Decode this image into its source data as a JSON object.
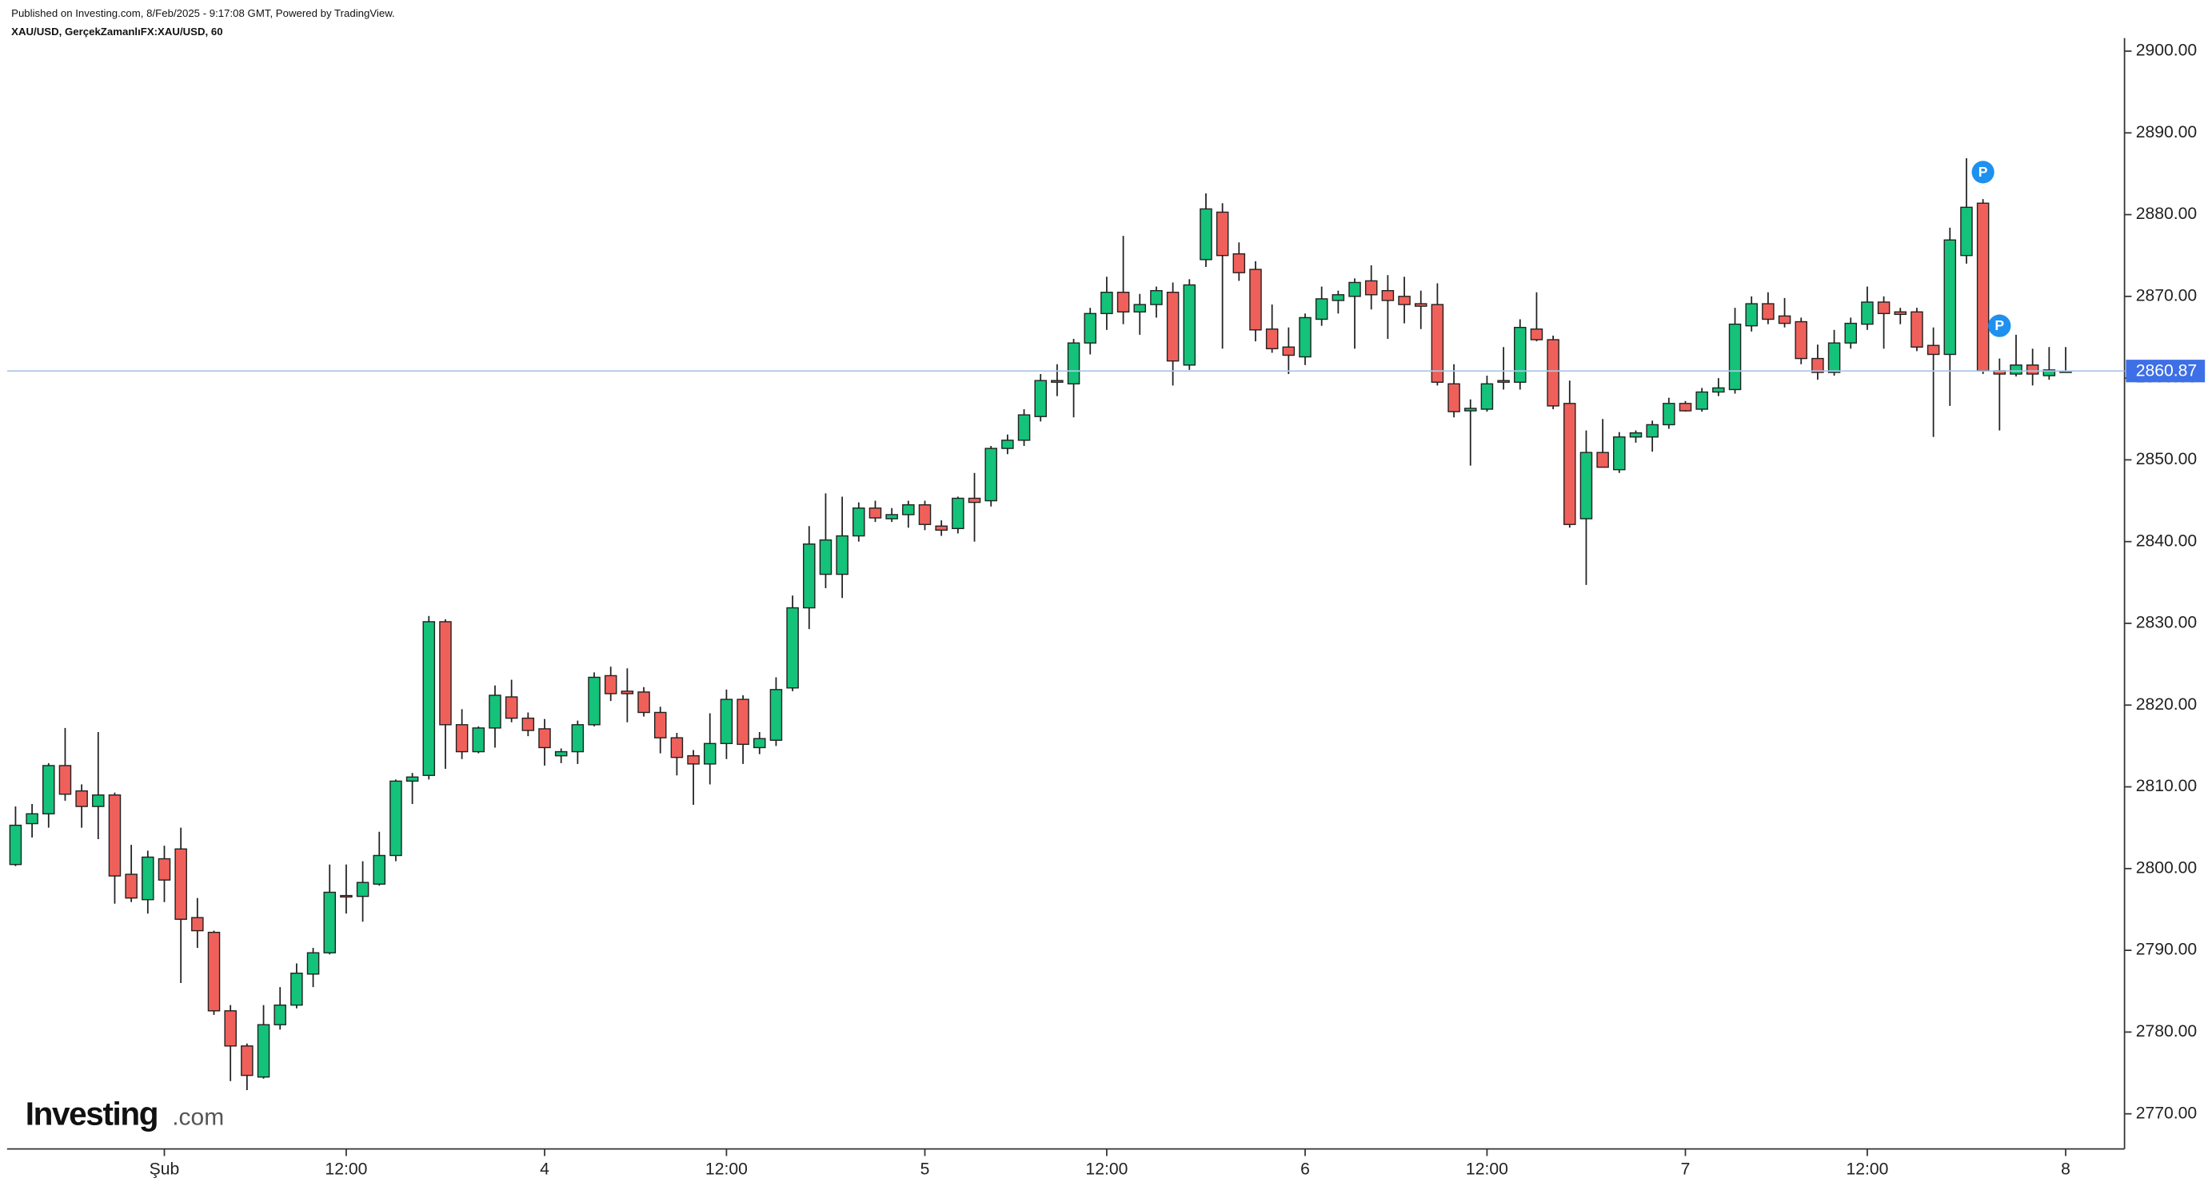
{
  "header": {
    "published": "Published on Investing.com, 8/Feb/2025 - 9:17:08 GMT, Powered by TradingView.",
    "symbol": "XAU/USD, GerçekZamanlıFX:XAU/USD, 60"
  },
  "logo": {
    "name": "Investing",
    "suffix": ".com"
  },
  "chart_data": {
    "type": "candlestick",
    "categories": [
      null,
      null,
      null,
      null,
      null,
      null,
      null,
      null,
      null,
      "Şub",
      null,
      null,
      null,
      null,
      null,
      null,
      null,
      null,
      null,
      null,
      "12:00",
      null,
      null,
      null,
      null,
      null,
      null,
      null,
      null,
      null,
      null,
      null,
      "4",
      null,
      null,
      null,
      null,
      null,
      null,
      null,
      null,
      null,
      null,
      "12:00",
      null,
      null,
      null,
      null,
      null,
      null,
      null,
      null,
      null,
      null,
      null,
      "5",
      null,
      null,
      null,
      null,
      null,
      null,
      null,
      null,
      null,
      null,
      "12:00",
      null,
      null,
      null,
      null,
      null,
      null,
      null,
      null,
      null,
      null,
      null,
      "6",
      null,
      null,
      null,
      null,
      null,
      null,
      null,
      null,
      null,
      null,
      "12:00",
      null,
      null,
      null,
      null,
      null,
      null,
      null,
      null,
      null,
      null,
      null,
      "7",
      null,
      null,
      null,
      null,
      null,
      null,
      null,
      null,
      null,
      null,
      "12:00",
      null,
      null,
      null,
      null,
      null,
      null,
      null,
      null,
      null,
      null,
      null,
      "8"
    ],
    "open": [
      2800.5,
      2805.5,
      2806.7,
      2812.6,
      2809.5,
      2807.6,
      2809.0,
      2799.3,
      2796.2,
      2801.2,
      2802.4,
      2794.0,
      2792.2,
      2782.6,
      2778.3,
      2774.5,
      2780.9,
      2783.3,
      2787.1,
      2789.7,
      2796.7,
      2796.6,
      2798.1,
      2801.6,
      2810.7,
      2811.4,
      2830.2,
      2817.6,
      2814.3,
      2817.2,
      2821.0,
      2818.4,
      2817.1,
      2813.8,
      2814.3,
      2817.6,
      2823.6,
      2821.7,
      2821.6,
      2819.1,
      2816.0,
      2813.8,
      2812.8,
      2815.3,
      2820.7,
      2814.8,
      2815.7,
      2822.1,
      2831.9,
      2836.0,
      2836.0,
      2840.7,
      2844.1,
      2842.8,
      2843.3,
      2844.5,
      2841.9,
      2841.6,
      2845.3,
      2845.0,
      2851.4,
      2852.4,
      2855.3,
      2859.7,
      2859.3,
      2864.3,
      2867.9,
      2870.5,
      2868.1,
      2869.0,
      2870.5,
      2861.6,
      2874.5,
      2880.3,
      2875.2,
      2873.3,
      2866.0,
      2863.8,
      2862.6,
      2867.2,
      2869.5,
      2870.0,
      2871.9,
      2870.7,
      2870.0,
      2869.1,
      2869.0,
      2859.3,
      2856.0,
      2856.2,
      2859.7,
      2859.5,
      2866.0,
      2864.7,
      2856.9,
      2842.8,
      2850.9,
      2848.8,
      2852.8,
      2852.8,
      2854.3,
      2856.9,
      2856.2,
      2858.3,
      2858.6,
      2866.4,
      2869.1,
      2867.6,
      2866.9,
      2862.4,
      2860.7,
      2864.3,
      2866.6,
      2869.3,
      2868.1,
      2868.1,
      2864.0,
      2862.9,
      2875.0,
      2881.4,
      2860.9,
      2860.5,
      2861.6,
      2860.3,
      2860.8
    ],
    "high": [
      2807.6,
      2807.9,
      2812.9,
      2817.2,
      2810.3,
      2816.7,
      2809.3,
      2802.9,
      2802.2,
      2802.8,
      2805.0,
      2796.4,
      2792.4,
      2783.3,
      2778.6,
      2783.3,
      2785.5,
      2788.4,
      2790.3,
      2800.5,
      2800.5,
      2800.9,
      2804.5,
      2810.9,
      2811.7,
      2830.9,
      2830.5,
      2819.5,
      2817.4,
      2822.4,
      2823.1,
      2819.1,
      2818.3,
      2814.7,
      2818.1,
      2824.0,
      2824.7,
      2824.5,
      2822.2,
      2819.8,
      2816.6,
      2814.5,
      2819.0,
      2821.9,
      2821.2,
      2816.7,
      2823.4,
      2833.4,
      2841.9,
      2845.9,
      2845.5,
      2844.8,
      2845.0,
      2844.1,
      2845.0,
      2845.0,
      2842.6,
      2845.5,
      2848.4,
      2851.7,
      2853.1,
      2856.2,
      2860.5,
      2861.7,
      2864.8,
      2868.6,
      2872.4,
      2877.4,
      2870.3,
      2871.2,
      2871.7,
      2872.1,
      2882.6,
      2881.4,
      2876.6,
      2874.3,
      2869.0,
      2866.2,
      2867.9,
      2871.2,
      2870.7,
      2872.2,
      2873.8,
      2872.6,
      2872.4,
      2870.7,
      2871.6,
      2861.7,
      2857.4,
      2860.3,
      2863.8,
      2867.2,
      2870.5,
      2865.2,
      2859.7,
      2853.6,
      2855.0,
      2853.4,
      2853.6,
      2854.8,
      2857.6,
      2857.2,
      2858.8,
      2860.0,
      2868.6,
      2870.0,
      2870.5,
      2869.8,
      2867.4,
      2864.1,
      2865.9,
      2867.4,
      2871.2,
      2870.0,
      2868.6,
      2868.6,
      2866.2,
      2878.4,
      2886.9,
      2881.9,
      2862.4,
      2865.3,
      2863.6,
      2863.8,
      2863.8
    ],
    "low": [
      2800.3,
      2803.8,
      2805.0,
      2808.3,
      2805.0,
      2803.6,
      2795.7,
      2795.9,
      2794.5,
      2795.9,
      2786.0,
      2790.3,
      2782.1,
      2774.0,
      2772.9,
      2774.3,
      2780.3,
      2782.9,
      2785.5,
      2789.5,
      2794.5,
      2793.5,
      2797.9,
      2800.9,
      2807.9,
      2810.9,
      2812.2,
      2813.4,
      2814.1,
      2814.8,
      2817.9,
      2816.2,
      2812.6,
      2812.9,
      2812.8,
      2817.4,
      2820.5,
      2817.9,
      2818.6,
      2814.1,
      2811.4,
      2807.8,
      2810.3,
      2813.4,
      2812.8,
      2814.0,
      2815.0,
      2821.7,
      2829.3,
      2834.3,
      2833.1,
      2840.0,
      2842.4,
      2842.4,
      2841.7,
      2841.4,
      2840.7,
      2841.0,
      2840.0,
      2844.3,
      2850.7,
      2851.7,
      2854.7,
      2857.8,
      2855.2,
      2862.9,
      2865.9,
      2866.6,
      2865.3,
      2867.4,
      2859.1,
      2861.0,
      2873.6,
      2863.6,
      2871.9,
      2864.5,
      2863.1,
      2860.5,
      2861.6,
      2866.4,
      2867.9,
      2863.6,
      2868.4,
      2864.8,
      2866.7,
      2866.0,
      2859.1,
      2855.2,
      2849.3,
      2855.9,
      2858.6,
      2858.6,
      2864.5,
      2856.2,
      2841.7,
      2834.7,
      2849.1,
      2848.4,
      2852.1,
      2851.0,
      2853.8,
      2855.9,
      2855.9,
      2857.8,
      2858.1,
      2865.7,
      2866.6,
      2866.2,
      2861.7,
      2859.8,
      2860.3,
      2863.6,
      2865.9,
      2863.6,
      2866.6,
      2863.3,
      2852.8,
      2856.6,
      2874.0,
      2860.5,
      2853.6,
      2860.2,
      2859.1,
      2859.8,
      2860.7
    ],
    "close": [
      2805.3,
      2806.7,
      2812.6,
      2809.1,
      2807.6,
      2809.0,
      2799.1,
      2796.4,
      2801.4,
      2798.6,
      2793.8,
      2792.4,
      2782.6,
      2778.3,
      2774.7,
      2780.9,
      2783.3,
      2787.2,
      2789.7,
      2797.1,
      2796.6,
      2798.3,
      2801.6,
      2810.7,
      2811.2,
      2830.2,
      2817.6,
      2814.3,
      2817.2,
      2821.2,
      2818.4,
      2816.9,
      2814.8,
      2814.3,
      2817.6,
      2823.4,
      2821.4,
      2821.4,
      2819.1,
      2816.0,
      2813.6,
      2812.8,
      2815.3,
      2820.7,
      2815.2,
      2815.9,
      2821.9,
      2831.9,
      2839.7,
      2840.2,
      2840.7,
      2844.1,
      2842.9,
      2843.3,
      2844.5,
      2842.1,
      2841.4,
      2845.3,
      2844.8,
      2851.4,
      2852.4,
      2855.5,
      2859.7,
      2859.5,
      2864.3,
      2867.9,
      2870.5,
      2868.1,
      2869.0,
      2870.7,
      2862.1,
      2871.4,
      2880.7,
      2875.0,
      2872.9,
      2865.9,
      2863.6,
      2862.8,
      2867.4,
      2869.7,
      2870.2,
      2871.7,
      2870.2,
      2869.5,
      2869.0,
      2868.8,
      2859.5,
      2855.9,
      2856.3,
      2859.3,
      2859.5,
      2866.2,
      2864.7,
      2856.6,
      2842.1,
      2850.9,
      2849.1,
      2852.8,
      2853.3,
      2854.3,
      2856.9,
      2856.0,
      2858.3,
      2858.8,
      2866.6,
      2869.1,
      2867.2,
      2866.7,
      2862.4,
      2860.7,
      2864.3,
      2866.7,
      2869.3,
      2867.9,
      2867.8,
      2863.8,
      2862.9,
      2876.9,
      2880.9,
      2860.9,
      2860.5,
      2861.6,
      2860.5,
      2861.0,
      2860.87
    ],
    "up_color": "#14c27a",
    "down_color": "#f0605a",
    "last_price": 2860.87,
    "last_price_color": "#3d6fe6",
    "markers": [
      {
        "label": "P",
        "x": 119,
        "y": 2885.2
      },
      {
        "label": "P",
        "x": 120,
        "y": 2866.4
      }
    ],
    "marker_color": "#1e90f0",
    "ylim": [
      2765.7,
      2901.6
    ],
    "yticks": [
      {
        "value": 2770,
        "label": "2770.00"
      },
      {
        "value": 2780,
        "label": "2780.00"
      },
      {
        "value": 2790,
        "label": "2790.00"
      },
      {
        "value": 2800,
        "label": "2800.00"
      },
      {
        "value": 2810,
        "label": "2810.00"
      },
      {
        "value": 2820,
        "label": "2820.00"
      },
      {
        "value": 2830,
        "label": "2830.00"
      },
      {
        "value": 2840,
        "label": "2840.00"
      },
      {
        "value": 2850,
        "label": "2850.00"
      },
      {
        "value": 2860,
        "label": "2860.00"
      },
      {
        "value": 2870,
        "label": "2870.00"
      },
      {
        "value": 2880,
        "label": "2880.00"
      },
      {
        "value": 2890,
        "label": "2890.00"
      },
      {
        "value": 2900,
        "label": "2900.00"
      }
    ],
    "grid": false
  }
}
